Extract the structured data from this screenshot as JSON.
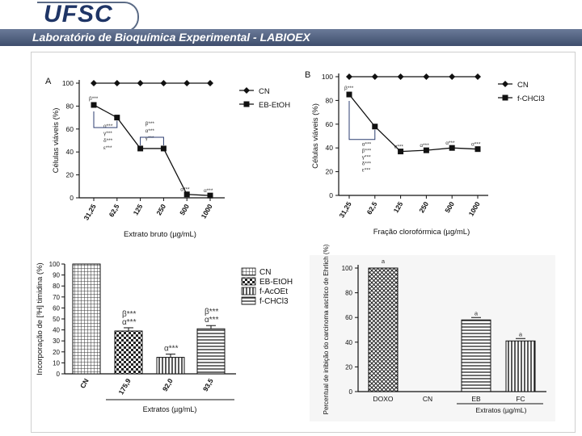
{
  "header": {
    "logo": "UFSC",
    "lab": "Laboratório de Bioquímica Experimental - LABIOEX"
  },
  "colors": {
    "accent": "#3f4e6d",
    "logo": "#1f3566",
    "ink": "#111111"
  },
  "chart_data": [
    {
      "type": "line",
      "panel": "A",
      "ylabel": "Células viáveis (%)",
      "xlabel": "Extrato bruto (µg/mL)",
      "categories": [
        "31,25",
        "62,5",
        "125",
        "250",
        "500",
        "1000"
      ],
      "yticks": [
        "0",
        "20",
        "40",
        "60",
        "80",
        "100"
      ],
      "ylim": [
        0,
        100
      ],
      "series": [
        {
          "name": "CN",
          "marker": "diamond",
          "values": [
            100,
            100,
            100,
            100,
            100,
            100
          ]
        },
        {
          "name": "EB-EtOH",
          "marker": "square",
          "values": [
            81,
            70,
            43,
            43,
            3,
            2
          ]
        }
      ],
      "annotations": [
        {
          "category": "31,25",
          "text": "β***"
        },
        {
          "category": "31,25",
          "text": "α***"
        },
        {
          "category": "31,25",
          "text": "γ***"
        },
        {
          "category": "31,25",
          "text": "δ***"
        },
        {
          "category": "31,25",
          "text": "ε***"
        },
        {
          "category": "125",
          "text": "β***"
        },
        {
          "category": "125",
          "text": "α***"
        },
        {
          "category": "125",
          "text": "γ***"
        },
        {
          "category": "500",
          "text": "α***"
        },
        {
          "category": "1000",
          "text": "α***"
        }
      ]
    },
    {
      "type": "line",
      "panel": "B",
      "ylabel": "Células viáveis (%)",
      "xlabel": "Fração clorofórmica (µg/mL)",
      "categories": [
        "31,25",
        "62,5",
        "125",
        "250",
        "500",
        "1000"
      ],
      "yticks": [
        "0",
        "20",
        "40",
        "60",
        "80",
        "100"
      ],
      "ylim": [
        0,
        100
      ],
      "series": [
        {
          "name": "CN",
          "marker": "diamond",
          "values": [
            100,
            100,
            100,
            100,
            100,
            100
          ]
        },
        {
          "name": "f-CHCl3",
          "marker": "square",
          "values": [
            85,
            58,
            37,
            38,
            40,
            39
          ]
        }
      ],
      "annotations": [
        {
          "category": "31,25",
          "text": "β***"
        },
        {
          "category": "62,5",
          "text": "α***"
        },
        {
          "category": "62,5",
          "text": "β***"
        },
        {
          "category": "62,5",
          "text": "γ***"
        },
        {
          "category": "62,5",
          "text": "δ***"
        },
        {
          "category": "62,5",
          "text": "ε***"
        },
        {
          "category": "125",
          "text": "α***"
        },
        {
          "category": "250",
          "text": "α***"
        },
        {
          "category": "500",
          "text": "α***"
        },
        {
          "category": "1000",
          "text": "α***"
        }
      ]
    },
    {
      "type": "bar",
      "ylabel": "Incorporação de [³H] timidina (%)",
      "xlabel": "Extratos (µg/mL)",
      "categories": [
        "CN",
        "175,9",
        "92,0",
        "93,5"
      ],
      "yticks": [
        "0",
        "10",
        "20",
        "30",
        "40",
        "50",
        "60",
        "70",
        "80",
        "90",
        "100"
      ],
      "ylim": [
        0,
        100
      ],
      "series": [
        {
          "name": "Incorporação",
          "values": [
            100,
            39,
            15,
            41
          ]
        }
      ],
      "legend": [
        "CN",
        "EB-EtOH",
        "f-AcOEt",
        "f-CHCl3"
      ],
      "annotations": [
        {
          "category": "175,9",
          "text": "β***"
        },
        {
          "category": "175,9",
          "text": "α***"
        },
        {
          "category": "92,0",
          "text": "α***"
        },
        {
          "category": "93,5",
          "text": "β***"
        },
        {
          "category": "93,5",
          "text": "α***"
        }
      ]
    },
    {
      "type": "bar",
      "ylabel": "Percentual de inibição do carcinoma ascítico de Ehrlich (%)",
      "xlabel": "Extratos (µg/mL)",
      "categories": [
        "DOXO",
        "CN",
        "EB",
        "FC"
      ],
      "yticks": [
        "0",
        "20",
        "40",
        "60",
        "80",
        "100"
      ],
      "ylim": [
        0,
        100
      ],
      "series": [
        {
          "name": "Inibição",
          "values": [
            100,
            0,
            58,
            41
          ]
        }
      ],
      "annotations": [
        {
          "category": "DOXO",
          "text": "a"
        },
        {
          "category": "EB",
          "text": "a"
        },
        {
          "category": "FC",
          "text": "a"
        }
      ]
    }
  ]
}
